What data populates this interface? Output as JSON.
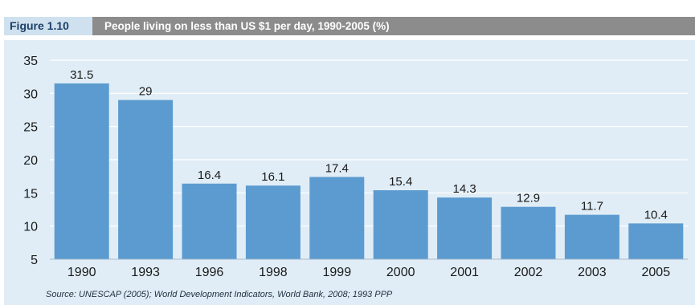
{
  "figure": {
    "number": "Figure 1.10",
    "title": "People living on less than US $1 per day, 1990-2005 (%)",
    "source": "Source: UNESCAP (2005); World Development Indicators, World Bank, 2008; 1993 PPP"
  },
  "colors": {
    "bar": "#5b9bd0",
    "panel": "#e0edf6",
    "header": "#8c8c8c",
    "grid": "#ffffff"
  },
  "chart_data": {
    "type": "bar",
    "title": "People living on less than US $1 per day, 1990-2005 (%)",
    "categories": [
      "1990",
      "1993",
      "1996",
      "1998",
      "1999",
      "2000",
      "2001",
      "2002",
      "2003",
      "2005"
    ],
    "values": [
      31.5,
      29,
      16.4,
      16.1,
      17.4,
      15.4,
      14.3,
      12.9,
      11.7,
      10.4
    ],
    "value_labels": [
      "31.5",
      "29",
      "16.4",
      "16.1",
      "17.4",
      "15.4",
      "14.3",
      "12.9",
      "11.7",
      "10.4"
    ],
    "ylim": [
      5,
      35
    ],
    "yticks": [
      5,
      10,
      15,
      20,
      25,
      30,
      35
    ],
    "grid": true,
    "legend": "none"
  }
}
